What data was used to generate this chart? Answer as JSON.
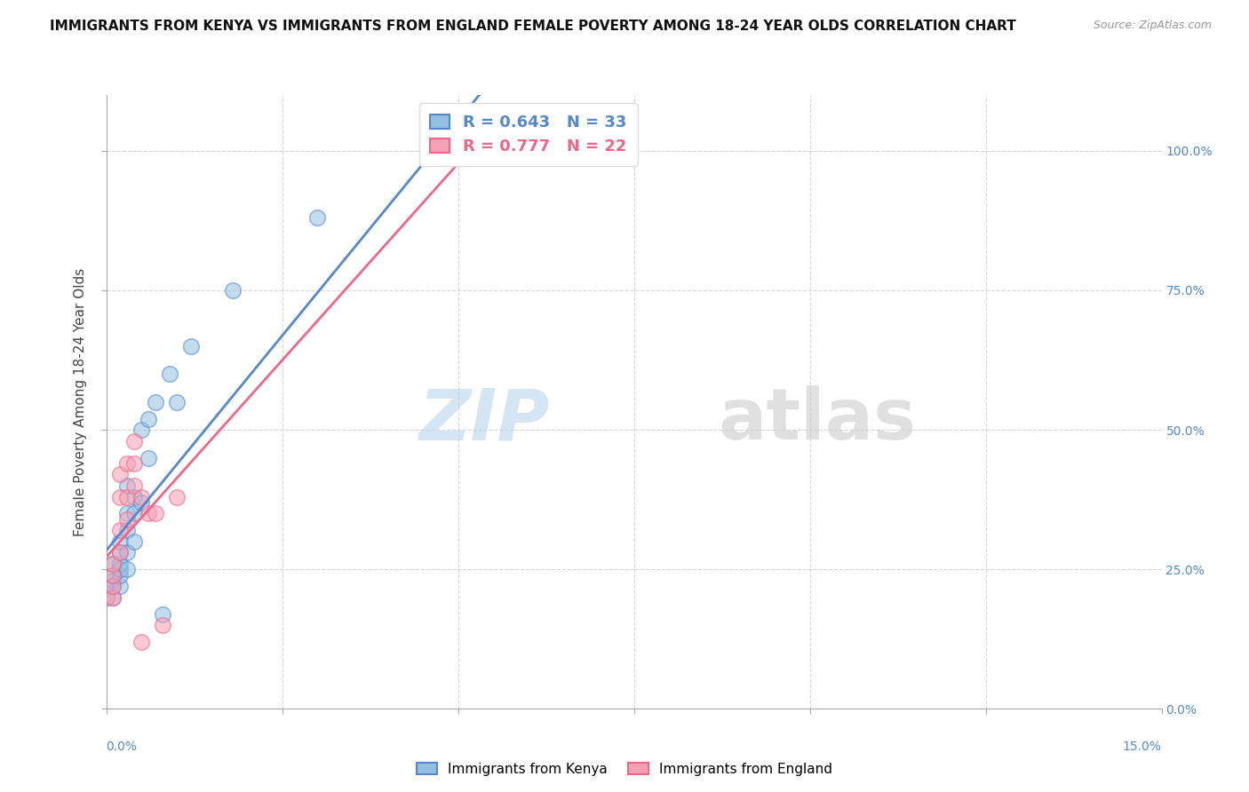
{
  "title": "IMMIGRANTS FROM KENYA VS IMMIGRANTS FROM ENGLAND FEMALE POVERTY AMONG 18-24 YEAR OLDS CORRELATION CHART",
  "source": "Source: ZipAtlas.com",
  "ylabel": "Female Poverty Among 18-24 Year Olds",
  "legend_kenya": "R = 0.643   N = 33",
  "legend_england": "R = 0.777   N = 22",
  "legend_label_kenya": "Immigrants from Kenya",
  "legend_label_england": "Immigrants from England",
  "kenya_color": "#92c0e0",
  "england_color": "#f5a0b5",
  "kenya_line_color": "#5588cc",
  "england_line_color": "#ee6688",
  "kenya_x": [
    0.0,
    0.0,
    0.001,
    0.001,
    0.001,
    0.001,
    0.001,
    0.002,
    0.002,
    0.002,
    0.002,
    0.002,
    0.002,
    0.003,
    0.003,
    0.003,
    0.003,
    0.003,
    0.004,
    0.004,
    0.004,
    0.005,
    0.005,
    0.006,
    0.006,
    0.007,
    0.008,
    0.009,
    0.01,
    0.012,
    0.018,
    0.03,
    0.06
  ],
  "kenya_y": [
    0.2,
    0.22,
    0.2,
    0.22,
    0.23,
    0.24,
    0.26,
    0.22,
    0.24,
    0.25,
    0.26,
    0.28,
    0.3,
    0.25,
    0.28,
    0.32,
    0.35,
    0.4,
    0.3,
    0.35,
    0.38,
    0.37,
    0.5,
    0.45,
    0.52,
    0.55,
    0.17,
    0.6,
    0.55,
    0.65,
    0.75,
    0.88,
    1.0
  ],
  "england_x": [
    0.0,
    0.001,
    0.001,
    0.001,
    0.001,
    0.002,
    0.002,
    0.002,
    0.002,
    0.003,
    0.003,
    0.003,
    0.004,
    0.004,
    0.004,
    0.005,
    0.005,
    0.006,
    0.007,
    0.008,
    0.01,
    0.05
  ],
  "england_y": [
    0.2,
    0.2,
    0.22,
    0.24,
    0.26,
    0.28,
    0.32,
    0.38,
    0.42,
    0.34,
    0.38,
    0.44,
    0.4,
    0.44,
    0.48,
    0.12,
    0.38,
    0.35,
    0.35,
    0.15,
    0.38,
    1.0
  ],
  "xlim": [
    0.0,
    0.15
  ],
  "ylim": [
    0.0,
    1.1
  ],
  "background_color": "#ffffff",
  "grid_color": "#cccccc",
  "title_fontsize": 11,
  "axis_label_fontsize": 11,
  "tick_fontsize": 10,
  "right_tick_color": "#5588cc"
}
